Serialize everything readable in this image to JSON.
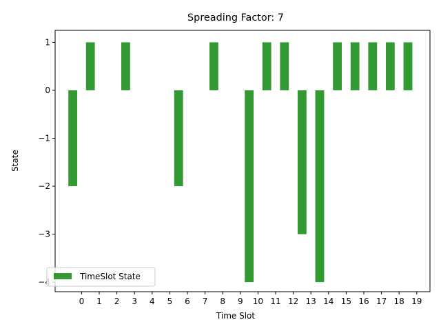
{
  "chart_data": {
    "type": "bar",
    "title": "Spreading Factor: 7",
    "xlabel": "Time Slot",
    "ylabel": "State",
    "ylim": [
      -4.2,
      1.25
    ],
    "yticks": [
      -4,
      -3,
      -2,
      -1,
      0,
      1
    ],
    "yticklabels": [
      "−4",
      "−3",
      "−2",
      "−1",
      "0",
      "1"
    ],
    "xticks": [
      0,
      1,
      2,
      3,
      4,
      5,
      6,
      7,
      8,
      9,
      10,
      11,
      12,
      13,
      14,
      15,
      16,
      17,
      18,
      19
    ],
    "xticklabels": [
      "0",
      "1",
      "2",
      "3",
      "4",
      "5",
      "6",
      "7",
      "8",
      "9",
      "10",
      "11",
      "12",
      "13",
      "14",
      "15",
      "16",
      "17",
      "18",
      "19"
    ],
    "xlim": [
      -1.5,
      19.75
    ],
    "bar_width": 0.5,
    "bar_color": "#339933",
    "legend_position": "lower-left",
    "series": [
      {
        "name": "TimeSlot State",
        "x": [
          -0.5,
          0.5,
          1.5,
          2.5,
          3.5,
          4.5,
          5.5,
          6.5,
          7.5,
          8.5,
          9.5,
          10.5,
          11.5,
          12.5,
          13.5,
          14.5,
          15.5,
          16.5,
          17.5,
          18.5
        ],
        "values": [
          -2,
          1,
          0,
          1,
          0,
          0,
          -2,
          0,
          1,
          0,
          -4,
          1,
          1,
          -3,
          -4,
          1,
          1,
          1,
          1,
          1
        ]
      }
    ]
  }
}
